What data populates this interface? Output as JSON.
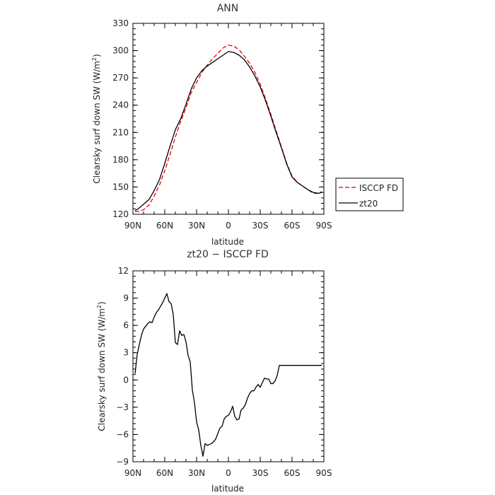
{
  "chart_data": [
    {
      "type": "line",
      "title": "ANN",
      "xlabel": "latitude",
      "ylabel": "Clearsky surf down SW (W/m²)",
      "ylabel_main": "Clearsky surf down SW (W/m",
      "ylabel_sup": "2",
      "ylabel_end": ")",
      "xlim": [
        -90,
        90
      ],
      "ylim": [
        120,
        330
      ],
      "x_ticks": [
        -90,
        -60,
        -30,
        0,
        30,
        60,
        90
      ],
      "x_tick_labels": [
        "90N",
        "60N",
        "30N",
        "0",
        "30S",
        "60S",
        "90S"
      ],
      "y_ticks": [
        120,
        150,
        180,
        210,
        240,
        270,
        300,
        330
      ],
      "y_tick_labels": [
        "120",
        "150",
        "180",
        "210",
        "240",
        "270",
        "300",
        "330"
      ],
      "legend_position": "outside-right",
      "series": [
        {
          "name": "ISCCP FD",
          "color": "#e8000b",
          "dash": "dashed",
          "x": [
            -88,
            -85,
            -80,
            -75,
            -70,
            -65,
            -60,
            -55,
            -50,
            -45,
            -40,
            -35,
            -30,
            -25,
            -20,
            -15,
            -10,
            -5,
            0,
            5,
            10,
            15,
            20,
            25,
            30,
            35,
            40,
            45,
            50,
            55,
            60,
            65,
            70,
            75,
            80,
            85,
            88
          ],
          "y": [
            123,
            123,
            125,
            130,
            140,
            152,
            168,
            186,
            205,
            222,
            237,
            254,
            265,
            276,
            284,
            291,
            297,
            303,
            306,
            305,
            301,
            294,
            286,
            276,
            263,
            247,
            230,
            212,
            194,
            176,
            162,
            155,
            151,
            147,
            143,
            143,
            145
          ]
        },
        {
          "name": "zt20",
          "color": "#000000",
          "dash": "solid",
          "x": [
            -88,
            -85,
            -80,
            -75,
            -70,
            -65,
            -60,
            -55,
            -50,
            -45,
            -40,
            -35,
            -30,
            -25,
            -20,
            -15,
            -10,
            -5,
            0,
            5,
            10,
            15,
            20,
            25,
            30,
            35,
            40,
            45,
            50,
            55,
            60,
            65,
            70,
            75,
            80,
            85,
            88
          ],
          "y": [
            124,
            126,
            131,
            136,
            146,
            158,
            176,
            195,
            213,
            225,
            241,
            258,
            270,
            278,
            283,
            287,
            291,
            295,
            299,
            298,
            295,
            290,
            282,
            272,
            260,
            245,
            228,
            210,
            193,
            175,
            161,
            155,
            151,
            147,
            144,
            143,
            144
          ]
        }
      ]
    },
    {
      "type": "line",
      "title": "zt20 − ISCCP FD",
      "xlabel": "latitude",
      "ylabel": "Clearsky surf down SW (W/m²)",
      "ylabel_main": "Clearsky surf down SW (W/m",
      "ylabel_sup": "2",
      "ylabel_end": ")",
      "xlim": [
        -90,
        90
      ],
      "ylim": [
        -9,
        12
      ],
      "x_ticks": [
        -90,
        -60,
        -30,
        0,
        30,
        60,
        90
      ],
      "x_tick_labels": [
        "90N",
        "60N",
        "30N",
        "0",
        "30S",
        "60S",
        "90S"
      ],
      "y_ticks": [
        -9,
        -6,
        -3,
        0,
        3,
        6,
        9,
        12
      ],
      "y_tick_labels": [
        "−9",
        "−6",
        "−3",
        "0",
        "3",
        "6",
        "9",
        "12"
      ],
      "series": [
        {
          "color": "#000000",
          "dash": "solid",
          "x": [
            -88,
            -86,
            -84,
            -82,
            -80,
            -78,
            -76,
            -74,
            -72,
            -70,
            -68,
            -66,
            -64,
            -62,
            -60,
            -58,
            -56,
            -54,
            -52,
            -50,
            -48,
            -46,
            -44,
            -42,
            -40,
            -38,
            -36,
            -34,
            -32,
            -30,
            -28,
            -26,
            -24,
            -22,
            -20,
            -18,
            -16,
            -14,
            -12,
            -10,
            -8,
            -6,
            -4,
            -2,
            0,
            2,
            4,
            6,
            8,
            10,
            12,
            14,
            16,
            18,
            20,
            22,
            24,
            26,
            28,
            30,
            32,
            34,
            36,
            38,
            40,
            42,
            44,
            46,
            48,
            50,
            52,
            54,
            56,
            58,
            60,
            62,
            64,
            66,
            68,
            70,
            72,
            74,
            76,
            78,
            80,
            82,
            84,
            86,
            88
          ],
          "y": [
            0.7,
            2.8,
            3.9,
            4.9,
            5.6,
            5.9,
            6.2,
            6.4,
            6.3,
            6.9,
            7.4,
            7.7,
            8.1,
            8.5,
            9.0,
            9.5,
            8.6,
            8.4,
            7.2,
            4.1,
            3.9,
            5.4,
            4.9,
            5.0,
            4.2,
            2.7,
            2.0,
            -1.1,
            -2.5,
            -4.6,
            -5.5,
            -7.2,
            -8.4,
            -7.0,
            -7.2,
            -7.1,
            -7.0,
            -6.8,
            -6.5,
            -5.9,
            -5.3,
            -5.1,
            -4.3,
            -4.0,
            -3.9,
            -3.5,
            -2.9,
            -4.0,
            -4.4,
            -4.3,
            -3.3,
            -3.1,
            -2.7,
            -2.0,
            -1.5,
            -1.2,
            -1.2,
            -0.8,
            -0.5,
            -0.8,
            -0.3,
            0.2,
            0.1,
            0.1,
            -0.4,
            -0.4,
            -0.1,
            0.5,
            1.6,
            1.6,
            1.6,
            1.6,
            1.6,
            1.6,
            1.6,
            1.6,
            1.6,
            1.6,
            1.6,
            1.6,
            1.6,
            1.6,
            1.6,
            1.6,
            1.6,
            1.6,
            1.6,
            1.6,
            1.6
          ]
        }
      ]
    }
  ]
}
